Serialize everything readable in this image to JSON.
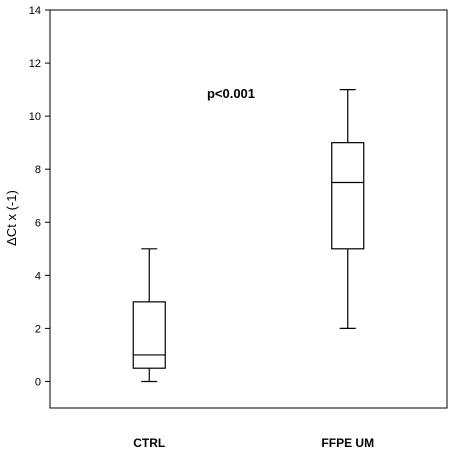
{
  "chart_data": {
    "type": "boxplot",
    "ylabel": "ΔCt x (-1)",
    "ylim": [
      -1,
      14
    ],
    "yticks": [
      0,
      2,
      4,
      6,
      8,
      10,
      12,
      14
    ],
    "categories": [
      "CTRL",
      "FFPE UM"
    ],
    "boxes": [
      {
        "category": "CTRL",
        "min": 0,
        "q1": 0.5,
        "median": 1,
        "q3": 3,
        "max": 5
      },
      {
        "category": "FFPE UM",
        "min": 2,
        "q1": 5,
        "median": 7.5,
        "q3": 9,
        "max": 11
      }
    ],
    "annotation": "p<0.001",
    "grid": false,
    "colors": {
      "line": "#000000",
      "box_fill": "#ffffff",
      "background": "#ffffff"
    }
  }
}
